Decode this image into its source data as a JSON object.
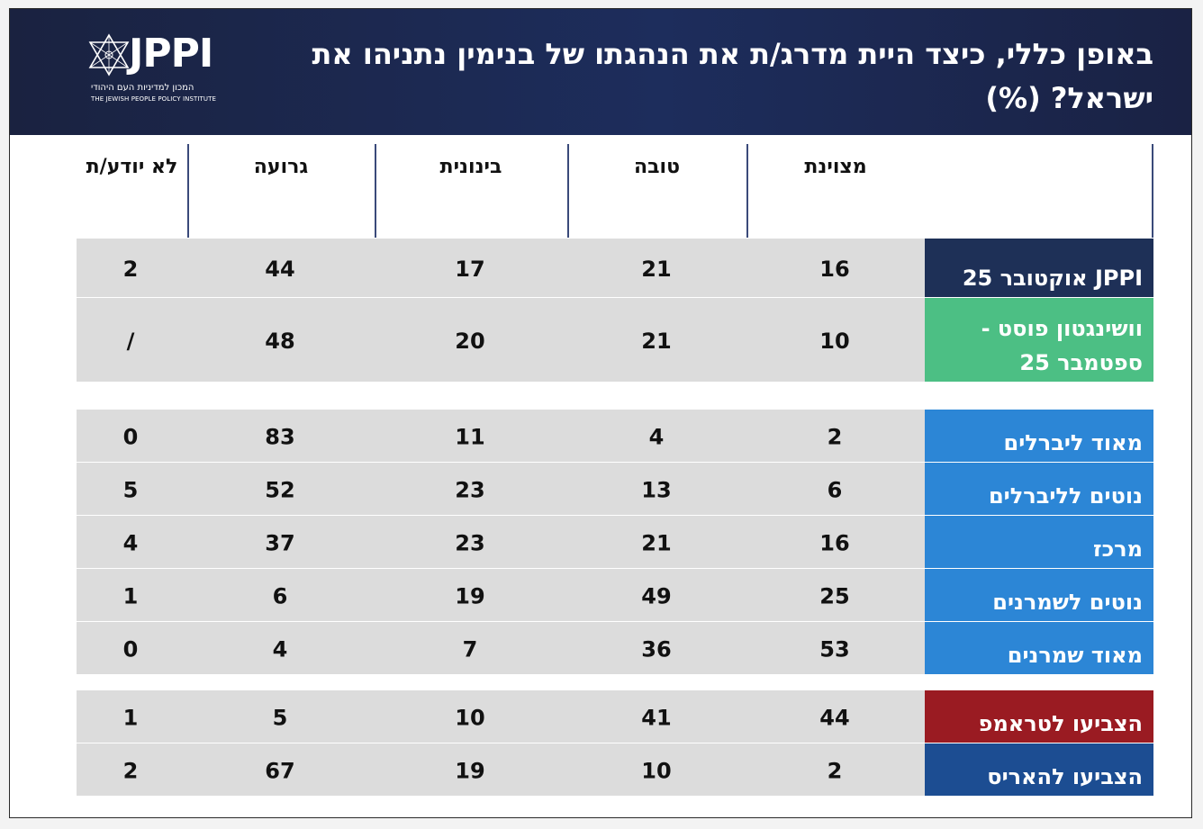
{
  "header": {
    "title": "באופן כללי, כיצד היית מדרג/ת את הנהגתו של בנימין נתניהו את ישראל? (%)",
    "logo_text": "JPPI",
    "logo_sub_he": "המכון למדיניות העם היהודי",
    "logo_sub_en": "THE JEWISH PEOPLE POLICY INSTITUTE"
  },
  "colors": {
    "header_bg": "#1d2d5c",
    "row_bg": "#dcdcdc",
    "jppi_label": "#1e3057",
    "wapo_label": "#4cbf84",
    "ideology_label": "#2c86d6",
    "trump_label": "#9a1b22",
    "harris_label": "#1c4d92"
  },
  "chart_data": {
    "type": "table",
    "title": "באופן כללי, כיצד היית מדרג/ת את הנהגתו של בנימין נתניהו את ישראל? (%)",
    "columns": [
      "מצוינת",
      "טובה",
      "בינונית",
      "גרועה",
      "לא יודע/ת"
    ],
    "groups": [
      {
        "rows": [
          {
            "label": "JPPI אוקטובר 25",
            "color": "#1e3057",
            "values": [
              "16",
              "21",
              "17",
              "44",
              "2"
            ]
          },
          {
            "label": "וושינגטון פוסט - ספטמבר 25",
            "color": "#4cbf84",
            "values": [
              "10",
              "21",
              "20",
              "48",
              "/"
            ]
          }
        ]
      },
      {
        "rows": [
          {
            "label": "מאוד ליברלים",
            "color": "#2c86d6",
            "values": [
              "2",
              "4",
              "11",
              "83",
              "0"
            ]
          },
          {
            "label": "נוטים לליברלים",
            "color": "#2c86d6",
            "values": [
              "6",
              "13",
              "23",
              "52",
              "5"
            ]
          },
          {
            "label": "מרכז",
            "color": "#2c86d6",
            "values": [
              "16",
              "21",
              "23",
              "37",
              "4"
            ]
          },
          {
            "label": "נוטים לשמרנים",
            "color": "#2c86d6",
            "values": [
              "25",
              "49",
              "19",
              "6",
              "1"
            ]
          },
          {
            "label": "מאוד שמרנים",
            "color": "#2c86d6",
            "values": [
              "53",
              "36",
              "7",
              "4",
              "0"
            ]
          }
        ]
      },
      {
        "rows": [
          {
            "label": "הצביעו לטראמפ",
            "color": "#9a1b22",
            "values": [
              "44",
              "41",
              "10",
              "5",
              "1"
            ]
          },
          {
            "label": "הצביעו להאריס",
            "color": "#1c4d92",
            "values": [
              "2",
              "10",
              "19",
              "67",
              "2"
            ]
          }
        ]
      }
    ]
  }
}
